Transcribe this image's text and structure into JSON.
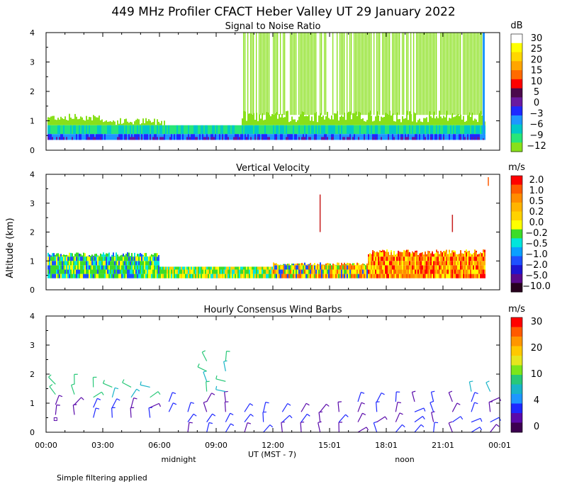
{
  "title": "449 MHz Profiler CFACT Heber Valley UT 29 January 2022",
  "y_axis_label": "Altitude (km)",
  "x_axis_label": "UT  (MST - 7)",
  "x_ticks": [
    "00:00",
    "03:00",
    "06:00",
    "09:00",
    "12:00",
    "15:01",
    "18:01",
    "21:01",
    "00:01"
  ],
  "x_notes": [
    "midnight",
    "noon"
  ],
  "footnote": "Simple filtering applied",
  "colors": {
    "snr": [
      "#ffffff",
      "#ffff00",
      "#ffd700",
      "#ffa500",
      "#ff6a00",
      "#ff0000",
      "#4b0a4b",
      "#6a1aa0",
      "#1e28ff",
      "#1e96ff",
      "#00c8c8",
      "#28e678",
      "#88e01a"
    ],
    "vv": [
      "#ff0000",
      "#ff5a00",
      "#ff8c00",
      "#ffb400",
      "#ffd200",
      "#ffff00",
      "#3cdc28",
      "#00e6dc",
      "#0aa0ff",
      "#1e50ff",
      "#1e14d2",
      "#5a0a8c",
      "#28001e"
    ],
    "wind": [
      "#ff0000",
      "#ff5a00",
      "#ff9600",
      "#ffc800",
      "#e6e61e",
      "#7ce61a",
      "#28c878",
      "#19b4c8",
      "#1e96ff",
      "#1e28ff",
      "#5a0aaa",
      "#3c0050"
    ]
  },
  "chart_data": [
    {
      "type": "heatmap",
      "title": "Signal to Noise Ratio",
      "units": "dB",
      "xlabel": "UT (MST - 7)",
      "ylabel": "Altitude (km)",
      "xlim": [
        0,
        24
      ],
      "ylim": [
        0,
        4
      ],
      "y_ticks": [
        "0",
        "1",
        "2",
        "3",
        "4"
      ],
      "colorbar_labels": [
        "30",
        "25",
        "20",
        "15",
        "10",
        "5",
        "0",
        "−3",
        "−6",
        "−9",
        "−12"
      ],
      "summary": [
        {
          "x_range": [
            0,
            3
          ],
          "top_km": 1.2,
          "dominant": "green with blue/purple below 0.8 km"
        },
        {
          "x_range": [
            3,
            6.3
          ],
          "top_km": 1.1,
          "dominant": "green, lowering top"
        },
        {
          "x_range": [
            6.3,
            10.2
          ],
          "top_km": 0.9,
          "dominant": "cyan/blue"
        },
        {
          "x_range": [
            10.3,
            24
          ],
          "top_km": 4.0,
          "dominant": "green streaks to 4 km, cyan/blue below 1 km"
        }
      ]
    },
    {
      "type": "heatmap",
      "title": "Vertical Velocity",
      "units": "m/s",
      "xlabel": "UT (MST - 7)",
      "ylabel": "Altitude (km)",
      "xlim": [
        0,
        24
      ],
      "ylim": [
        0,
        4
      ],
      "y_ticks": [
        "0",
        "1",
        "2",
        "3",
        "4"
      ],
      "colorbar_labels": [
        "2.0",
        "1.0",
        "0.5",
        "0.2",
        "0.0",
        "−0.2",
        "−0.5",
        "−1.0",
        "−2.0",
        "−5.0",
        "−10.0"
      ],
      "summary": [
        {
          "x_range": [
            0,
            6
          ],
          "top_km": 1.3,
          "dominant": "green with cyan/blue"
        },
        {
          "x_range": [
            6,
            12
          ],
          "top_km": 0.8,
          "dominant": "green/yellow"
        },
        {
          "x_range": [
            12,
            17
          ],
          "top_km": 0.9,
          "dominant": "yellow/orange with some red"
        },
        {
          "x_range": [
            17,
            23.3
          ],
          "top_km": 1.4,
          "dominant": "orange/red below 1 km, yellow above"
        }
      ]
    },
    {
      "type": "scatter",
      "title": "Hourly Consensus Wind Barbs",
      "units": "m/s",
      "xlabel": "UT (MST - 7)",
      "ylabel": "Altitude (km)",
      "xlim": [
        0,
        24
      ],
      "ylim": [
        0,
        4
      ],
      "y_ticks": [
        "0",
        "1",
        "2",
        "3",
        "4"
      ],
      "colorbar_labels": [
        "30",
        "20",
        "10",
        "4",
        "0"
      ],
      "barb_hours": [
        0.5,
        1.5,
        2.5,
        3.5,
        4.5,
        5.5,
        6.5,
        7.5,
        8.5,
        9.5,
        10.5,
        11.5,
        12.5,
        13.5,
        14.5,
        15.5,
        16.5,
        17.5,
        18.5,
        19.5,
        20.5,
        21.5,
        22.5,
        23.5
      ],
      "barb_top_km": [
        1.9,
        1.8,
        1.8,
        1.7,
        1.6,
        1.7,
        1.3,
        0.8,
        2.5,
        2.5,
        0.9,
        0.8,
        0.9,
        0.8,
        0.8,
        0.9,
        1.1,
        1.1,
        1.1,
        1.2,
        1.3,
        1.3,
        1.4,
        1.4
      ],
      "barb_bottom_km": [
        0.6,
        0.6,
        0.5,
        0.5,
        0.5,
        0.5,
        0.7,
        0.0,
        0.0,
        0.0,
        0.0,
        0.0,
        0.0,
        0.0,
        0.0,
        0.0,
        0.0,
        0.0,
        0.0,
        0.0,
        0.0,
        0.0,
        0.0,
        0.0
      ]
    }
  ]
}
